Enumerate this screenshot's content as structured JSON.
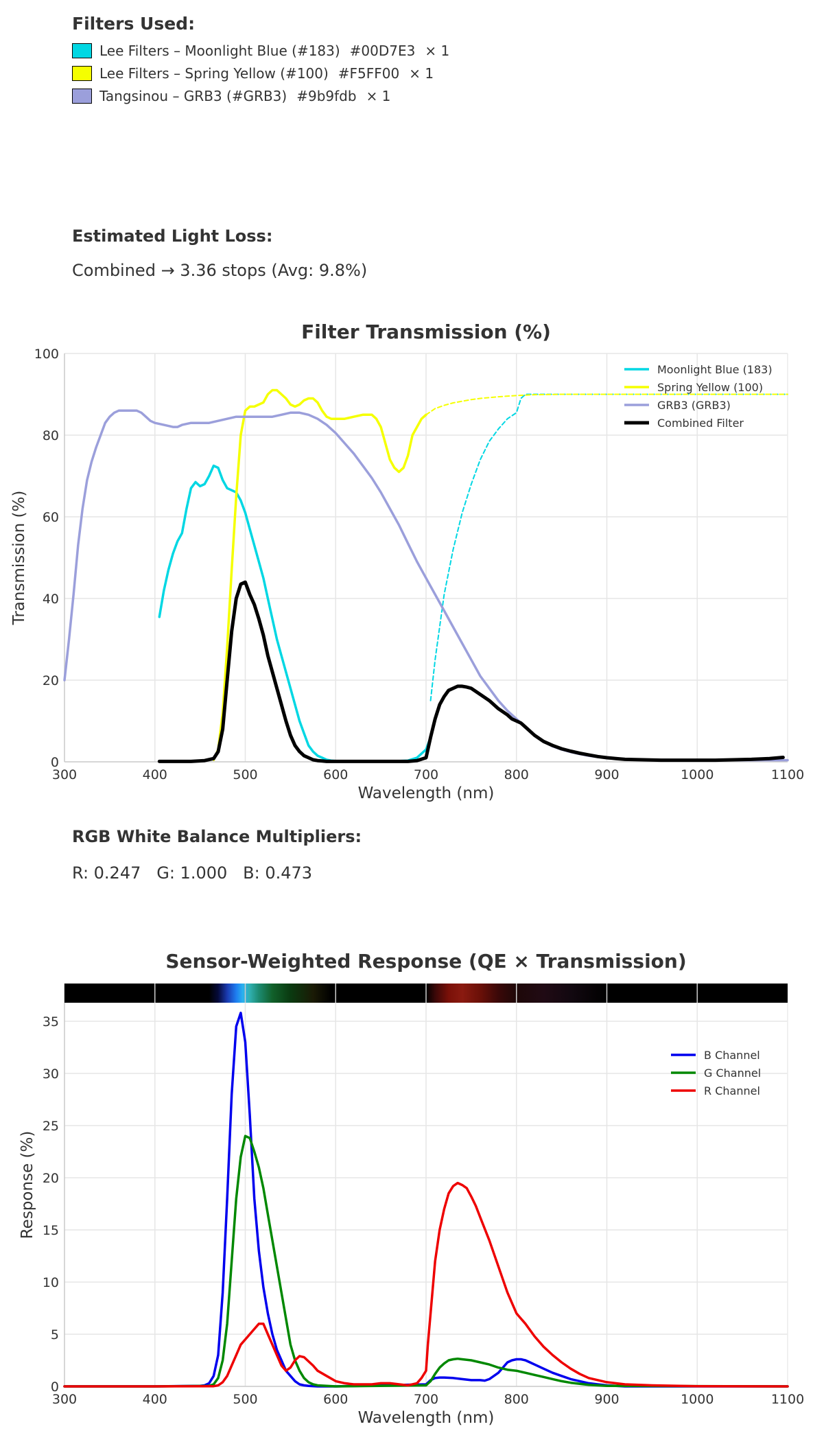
{
  "filters": {
    "heading": "Filters Used:",
    "items": [
      {
        "name": "Lee Filters – Moonlight Blue (#183)",
        "hex": "#00D7E3",
        "count": "× 1",
        "color": "#00D7E3"
      },
      {
        "name": "Lee Filters – Spring Yellow (#100)",
        "hex": "#F5FF00",
        "count": "× 1",
        "color": "#F5FF00"
      },
      {
        "name": "Tangsinou – GRB3 (#GRB3)",
        "hex": "#9b9fdb",
        "count": "× 1",
        "color": "#9b9fdb"
      }
    ]
  },
  "light_loss": {
    "heading": "Estimated Light Loss:",
    "value": "Combined → 3.36 stops  (Avg: 9.8%)"
  },
  "white_balance": {
    "heading": "RGB White Balance Multipliers:",
    "values": "R: 0.247   G: 1.000   B: 0.473"
  },
  "chart_data": [
    {
      "type": "line",
      "title": "Filter Transmission (%)",
      "xlabel": "Wavelength (nm)",
      "ylabel": "Transmission (%)",
      "xlim": [
        300,
        1100
      ],
      "ylim": [
        0,
        100
      ],
      "xticks": [
        "300",
        "400",
        "500",
        "600",
        "700",
        "800",
        "900",
        "1000",
        "1100"
      ],
      "yticks": [
        "0",
        "20",
        "40",
        "60",
        "80",
        "100"
      ],
      "grid": true,
      "legend_position": "top-right",
      "series": [
        {
          "name": "Moonlight Blue (183)",
          "color": "#00D7E3",
          "x": [
            405,
            410,
            415,
            420,
            425,
            430,
            435,
            440,
            445,
            450,
            455,
            460,
            465,
            470,
            475,
            480,
            485,
            490,
            495,
            500,
            505,
            510,
            515,
            520,
            525,
            530,
            535,
            540,
            545,
            550,
            555,
            560,
            565,
            570,
            575,
            580,
            585,
            590,
            595,
            600,
            620,
            640,
            660,
            680,
            690,
            700,
            705
          ],
          "y": [
            35.5,
            42,
            47,
            51,
            54,
            56,
            62,
            67,
            68.5,
            67.5,
            68,
            70,
            72.5,
            72,
            69,
            67,
            66.5,
            66,
            64,
            61,
            57,
            53,
            49,
            45,
            40,
            35,
            30,
            26,
            22,
            18,
            14,
            10,
            7,
            4,
            2.5,
            1.5,
            1,
            0.5,
            0.3,
            0.2,
            0.1,
            0.1,
            0.1,
            0.3,
            1,
            3,
            6
          ]
        },
        {
          "name": "Moonlight Blue (183) (dashed)",
          "color": "#00D7E3",
          "x": [
            705,
            710,
            715,
            720,
            730,
            740,
            750,
            760,
            770,
            780,
            790,
            800,
            805,
            810,
            850,
            900,
            950,
            1000,
            1050,
            1100
          ],
          "y": [
            15,
            25,
            33,
            41,
            52,
            61,
            68,
            74,
            78.5,
            81.5,
            84,
            85.5,
            89,
            90,
            90,
            90,
            90,
            90,
            90,
            90
          ]
        },
        {
          "name": "Spring Yellow (100)",
          "color": "#F5FF00",
          "x": [
            465,
            470,
            475,
            480,
            485,
            490,
            495,
            500,
            505,
            510,
            515,
            520,
            525,
            530,
            535,
            540,
            545,
            550,
            555,
            560,
            565,
            570,
            575,
            580,
            585,
            590,
            595,
            600,
            605,
            610,
            620,
            630,
            640,
            645,
            650,
            655,
            660,
            665,
            670,
            675,
            680,
            685,
            690,
            695,
            700
          ],
          "y": [
            0.5,
            3,
            12,
            28,
            47,
            65,
            80,
            86,
            87,
            87,
            87.5,
            88,
            90,
            91,
            91,
            90,
            89,
            87.5,
            87,
            87.5,
            88.5,
            89,
            89,
            88,
            86,
            84.5,
            84,
            84,
            84,
            84,
            84.5,
            85,
            85,
            84,
            82,
            78,
            74,
            72,
            71,
            72,
            75,
            80,
            82,
            84,
            85
          ]
        },
        {
          "name": "Spring Yellow (100) (dashed)",
          "color": "#F5FF00",
          "x": [
            700,
            710,
            720,
            730,
            740,
            750,
            760,
            780,
            800,
            820,
            850,
            900,
            1000,
            1100
          ],
          "y": [
            85,
            86.5,
            87.3,
            87.9,
            88.3,
            88.7,
            89,
            89.4,
            89.7,
            89.9,
            90,
            90,
            90,
            90
          ]
        },
        {
          "name": "GRB3 (GRB3)",
          "color": "#9b9fdb",
          "x": [
            300,
            305,
            310,
            315,
            320,
            325,
            330,
            335,
            340,
            345,
            350,
            355,
            360,
            365,
            370,
            375,
            380,
            385,
            390,
            395,
            400,
            410,
            420,
            425,
            430,
            440,
            450,
            460,
            470,
            480,
            490,
            500,
            510,
            520,
            530,
            540,
            550,
            560,
            570,
            580,
            590,
            600,
            610,
            620,
            630,
            640,
            650,
            660,
            670,
            680,
            690,
            700,
            710,
            720,
            730,
            740,
            750,
            760,
            770,
            780,
            790,
            800,
            810,
            820,
            830,
            840,
            850,
            860,
            870,
            880,
            890,
            900,
            910,
            920,
            930,
            940,
            950,
            1000,
            1050,
            1100
          ],
          "y": [
            20,
            30,
            41,
            53,
            62,
            69,
            73.5,
            77,
            80,
            83,
            84.5,
            85.5,
            86,
            86,
            86,
            86,
            86,
            85.5,
            84.5,
            83.5,
            83,
            82.5,
            82,
            82,
            82.5,
            83,
            83,
            83,
            83.5,
            84,
            84.5,
            84.5,
            84.5,
            84.5,
            84.5,
            85,
            85.5,
            85.5,
            85,
            84,
            82.5,
            80.5,
            78,
            75.5,
            72.5,
            69.5,
            66,
            62,
            58,
            53.5,
            49,
            45,
            41,
            37,
            33,
            29,
            25,
            21,
            18,
            15,
            12.5,
            10.5,
            8.5,
            6.5,
            5,
            3.8,
            3,
            2.4,
            1.9,
            1.5,
            1.2,
            1,
            0.8,
            0.7,
            0.6,
            0.5,
            0.5,
            0.4,
            0.4,
            0.4
          ]
        },
        {
          "name": "Combined Filter",
          "color": "#000000",
          "x": [
            405,
            420,
            440,
            455,
            465,
            470,
            475,
            480,
            485,
            490,
            495,
            500,
            505,
            510,
            515,
            520,
            525,
            530,
            535,
            540,
            545,
            550,
            555,
            560,
            565,
            570,
            575,
            580,
            585,
            590,
            600,
            620,
            640,
            660,
            680,
            690,
            700,
            705,
            710,
            715,
            720,
            725,
            730,
            735,
            740,
            745,
            750,
            760,
            770,
            780,
            790,
            795,
            800,
            805,
            810,
            820,
            830,
            840,
            850,
            860,
            870,
            880,
            890,
            900,
            910,
            920,
            940,
            960,
            980,
            1000,
            1020,
            1040,
            1060,
            1080,
            1095
          ],
          "y": [
            0.1,
            0.1,
            0.1,
            0.3,
            0.8,
            2.5,
            8,
            20,
            32,
            40,
            43.5,
            44,
            41,
            38.5,
            35,
            31,
            26,
            22,
            18,
            14,
            10,
            6.5,
            4,
            2.5,
            1.5,
            1,
            0.5,
            0.3,
            0.2,
            0.1,
            0.1,
            0.1,
            0.1,
            0.1,
            0.1,
            0.3,
            1,
            6,
            10.5,
            14,
            16,
            17.5,
            18,
            18.5,
            18.5,
            18.3,
            18,
            16.5,
            15,
            13,
            11.5,
            10.5,
            10,
            9.5,
            8.5,
            6.5,
            5,
            4,
            3.2,
            2.6,
            2.1,
            1.7,
            1.3,
            1,
            0.8,
            0.6,
            0.5,
            0.4,
            0.4,
            0.4,
            0.4,
            0.5,
            0.6,
            0.8,
            1.1
          ]
        }
      ]
    },
    {
      "type": "line",
      "title": "Sensor-Weighted Response (QE × Transmission)",
      "xlabel": "Wavelength (nm)",
      "ylabel": "Response (%)",
      "xlim": [
        300,
        1100
      ],
      "ylim": [
        0,
        35
      ],
      "xticks": [
        "300",
        "400",
        "500",
        "600",
        "700",
        "800",
        "900",
        "1000",
        "1100"
      ],
      "yticks": [
        "0",
        "5",
        "10",
        "15",
        "20",
        "25",
        "30",
        "35"
      ],
      "grid": true,
      "legend_position": "top-right",
      "spectrum_strip": true,
      "series": [
        {
          "name": "B Channel",
          "color": "#0000EE",
          "x": [
            300,
            400,
            450,
            455,
            460,
            465,
            470,
            475,
            480,
            485,
            490,
            495,
            500,
            505,
            510,
            515,
            520,
            525,
            530,
            535,
            540,
            545,
            550,
            555,
            560,
            565,
            570,
            580,
            600,
            700,
            705,
            710,
            715,
            720,
            730,
            740,
            750,
            760,
            765,
            770,
            775,
            780,
            785,
            790,
            795,
            800,
            805,
            810,
            815,
            820,
            830,
            840,
            850,
            860,
            870,
            880,
            890,
            900,
            920,
            1100
          ],
          "y": [
            0,
            0,
            0.05,
            0.1,
            0.3,
            1,
            3,
            9,
            18,
            28,
            34.5,
            35.8,
            33,
            26,
            18,
            13,
            9.5,
            7,
            5,
            3.5,
            2.5,
            1.5,
            1,
            0.5,
            0.2,
            0.1,
            0.05,
            0,
            0,
            0.2,
            0.6,
            0.8,
            0.85,
            0.85,
            0.8,
            0.7,
            0.6,
            0.6,
            0.55,
            0.7,
            1,
            1.3,
            1.8,
            2.3,
            2.5,
            2.6,
            2.6,
            2.5,
            2.3,
            2.1,
            1.7,
            1.3,
            1,
            0.7,
            0.5,
            0.3,
            0.2,
            0.1,
            0,
            0
          ]
        },
        {
          "name": "G Channel",
          "color": "#008800",
          "x": [
            300,
            400,
            460,
            465,
            470,
            475,
            480,
            485,
            490,
            495,
            500,
            505,
            510,
            515,
            520,
            525,
            530,
            535,
            540,
            545,
            550,
            555,
            560,
            565,
            570,
            575,
            580,
            590,
            600,
            700,
            705,
            710,
            715,
            720,
            725,
            730,
            735,
            740,
            745,
            750,
            760,
            770,
            780,
            790,
            800,
            810,
            820,
            830,
            840,
            850,
            860,
            870,
            880,
            890,
            900,
            1100
          ],
          "y": [
            0,
            0,
            0.05,
            0.2,
            0.8,
            2.5,
            6,
            12,
            18,
            22,
            24,
            23.8,
            22.5,
            21,
            19,
            16.5,
            14,
            11.5,
            9,
            6.5,
            4,
            2.5,
            1.5,
            0.8,
            0.4,
            0.2,
            0.1,
            0.05,
            0,
            0.1,
            0.5,
            1.2,
            1.8,
            2.2,
            2.5,
            2.6,
            2.65,
            2.6,
            2.55,
            2.5,
            2.3,
            2.1,
            1.8,
            1.6,
            1.5,
            1.3,
            1.1,
            0.9,
            0.7,
            0.5,
            0.35,
            0.25,
            0.15,
            0.1,
            0.05,
            0
          ]
        },
        {
          "name": "R Channel",
          "color": "#EE0000",
          "x": [
            300,
            400,
            460,
            465,
            470,
            475,
            480,
            485,
            490,
            495,
            500,
            505,
            510,
            515,
            520,
            525,
            530,
            535,
            540,
            545,
            550,
            555,
            560,
            565,
            570,
            575,
            580,
            590,
            600,
            610,
            620,
            640,
            650,
            660,
            680,
            690,
            695,
            700,
            702,
            705,
            710,
            715,
            720,
            725,
            730,
            735,
            740,
            745,
            750,
            755,
            760,
            770,
            780,
            790,
            795,
            800,
            805,
            810,
            820,
            830,
            840,
            850,
            860,
            870,
            880,
            900,
            920,
            950,
            1000,
            1100
          ],
          "y": [
            0,
            0,
            0.01,
            0.02,
            0.1,
            0.4,
            1,
            2,
            3,
            4,
            4.5,
            5,
            5.5,
            6,
            6,
            5,
            4,
            3,
            2,
            1.5,
            1.8,
            2.5,
            2.9,
            2.8,
            2.4,
            2,
            1.5,
            1,
            0.5,
            0.3,
            0.2,
            0.2,
            0.3,
            0.3,
            0.1,
            0.3,
            0.8,
            1.5,
            4,
            7,
            12,
            15,
            17,
            18.5,
            19.2,
            19.5,
            19.3,
            19,
            18.2,
            17.3,
            16.2,
            14,
            11.5,
            9,
            8,
            7,
            6.5,
            6,
            4.8,
            3.8,
            3,
            2.3,
            1.7,
            1.2,
            0.8,
            0.4,
            0.2,
            0.1,
            0.02,
            0
          ]
        }
      ]
    }
  ]
}
